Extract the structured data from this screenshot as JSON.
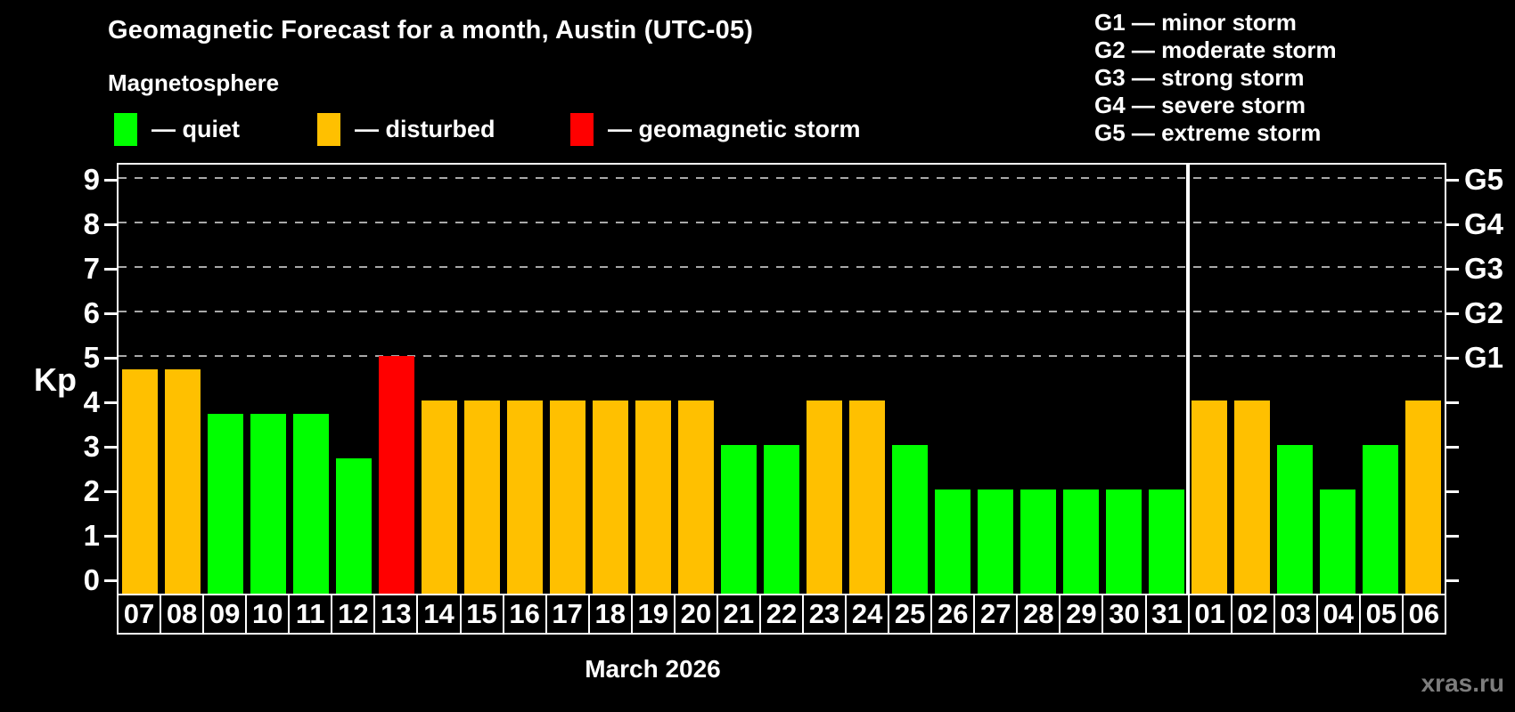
{
  "header": {
    "title": "Geomagnetic Forecast for a month, Austin (UTC-05)",
    "subtitle": "Magnetosphere"
  },
  "legend": {
    "items": [
      {
        "state": "quiet",
        "label": "— quiet"
      },
      {
        "state": "disturbed",
        "label": "— disturbed"
      },
      {
        "state": "storm",
        "label": "— geomagnetic storm"
      }
    ]
  },
  "g_legend": {
    "items": [
      "G1 — minor storm",
      "G2 — moderate storm",
      "G3 — strong storm",
      "G4 — severe storm",
      "G5 — extreme storm"
    ]
  },
  "chart_data": {
    "type": "bar",
    "title": "Geomagnetic Forecast for a month, Austin (UTC-05)",
    "xlabel": "March 2026",
    "ylabel": "Kp",
    "ylim": [
      0,
      9.4
    ],
    "yticks": [
      0,
      1,
      2,
      3,
      4,
      5,
      6,
      7,
      8,
      9
    ],
    "grid_levels": [
      5,
      6,
      7,
      8,
      9
    ],
    "grid_style": "dashed",
    "legend_position": "top-left",
    "right_ticks": [
      {
        "label": "G1",
        "value": 5
      },
      {
        "label": "G2",
        "value": 6
      },
      {
        "label": "G3",
        "value": 7
      },
      {
        "label": "G4",
        "value": 8
      },
      {
        "label": "G5",
        "value": 9
      }
    ],
    "categories": [
      "07",
      "08",
      "09",
      "10",
      "11",
      "12",
      "13",
      "14",
      "15",
      "16",
      "17",
      "18",
      "19",
      "20",
      "21",
      "22",
      "23",
      "24",
      "25",
      "26",
      "27",
      "28",
      "29",
      "30",
      "31",
      "01",
      "02",
      "03",
      "04",
      "05",
      "06"
    ],
    "values": [
      4.7,
      4.7,
      3.7,
      3.7,
      3.7,
      2.7,
      5.0,
      4.0,
      4.0,
      4.0,
      4.0,
      4.0,
      4.0,
      4.0,
      3.0,
      3.0,
      4.0,
      4.0,
      3.0,
      2.0,
      2.0,
      2.0,
      2.0,
      2.0,
      2.0,
      4.0,
      4.0,
      3.0,
      2.0,
      3.0,
      4.0
    ],
    "states": [
      "disturbed",
      "disturbed",
      "quiet",
      "quiet",
      "quiet",
      "quiet",
      "storm",
      "disturbed",
      "disturbed",
      "disturbed",
      "disturbed",
      "disturbed",
      "disturbed",
      "disturbed",
      "quiet",
      "quiet",
      "disturbed",
      "disturbed",
      "quiet",
      "quiet",
      "quiet",
      "quiet",
      "quiet",
      "quiet",
      "quiet",
      "disturbed",
      "disturbed",
      "quiet",
      "quiet",
      "quiet",
      "disturbed"
    ],
    "colors": {
      "quiet": "#00ff00",
      "disturbed": "#ffc000",
      "storm": "#ff0000"
    },
    "month_boundary_after": "31"
  },
  "footer": {
    "watermark": "xras.ru"
  }
}
